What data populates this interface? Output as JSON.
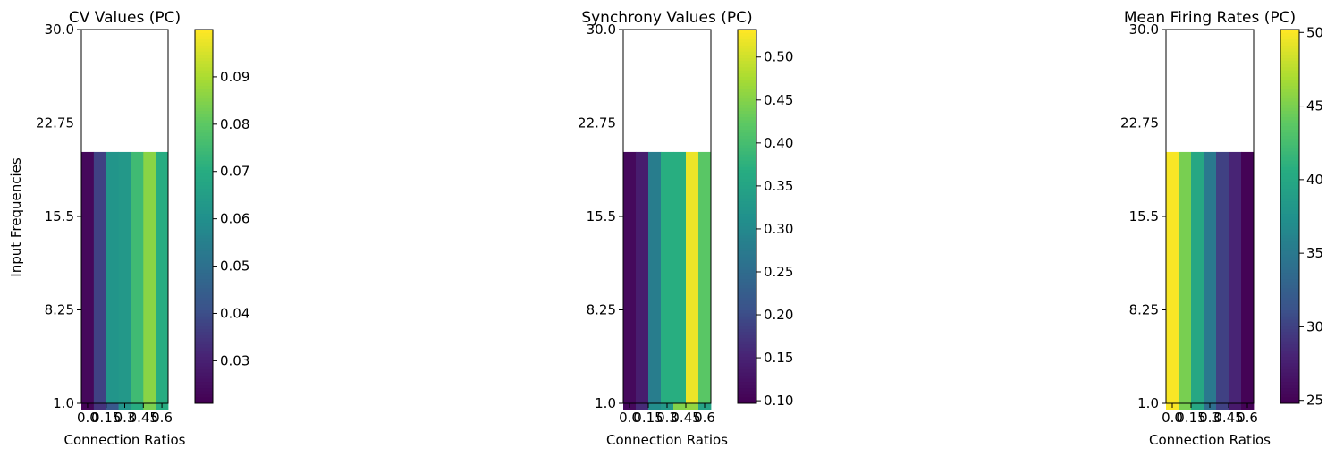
{
  "chart_data": [
    {
      "type": "heatmap",
      "title": "CV Values (PC)",
      "xlabel": "Connection Ratios",
      "ylabel": "Input Frequencies",
      "x_tick_labels": [
        "0.0",
        "0.15",
        "0.3",
        "0.45",
        "0.6"
      ],
      "x_tick_values": [
        0.0,
        0.15,
        0.3,
        0.45,
        0.6
      ],
      "y_tick_labels": [
        "1.0",
        "8.25",
        "15.5",
        "22.75",
        "30.0"
      ],
      "y_tick_values": [
        1.0,
        8.25,
        15.5,
        22.75,
        30.0
      ],
      "x": [
        0.0,
        0.1,
        0.2,
        0.3,
        0.4,
        0.5,
        0.6
      ],
      "y": [
        1,
        2,
        3,
        4,
        5,
        6,
        7,
        8,
        9,
        10,
        11,
        12,
        13,
        14,
        15,
        16,
        17,
        18,
        19,
        20
      ],
      "ylim": [
        1.0,
        30.0
      ],
      "colormap": "viridis",
      "colorbar": {
        "min": 0.021,
        "max": 0.1,
        "tick_labels": [
          "0.03",
          "0.04",
          "0.05",
          "0.06",
          "0.07",
          "0.08",
          "0.09"
        ],
        "tick_values": [
          0.03,
          0.04,
          0.05,
          0.06,
          0.07,
          0.08,
          0.09
        ]
      },
      "grid": false,
      "values": [
        [
          0.022,
          0.034,
          0.043,
          0.062,
          0.07,
          0.084,
          0.07
        ],
        [
          0.022,
          0.032,
          0.054,
          0.06,
          0.073,
          0.088,
          0.072
        ],
        [
          0.022,
          0.032,
          0.058,
          0.062,
          0.075,
          0.087,
          0.068
        ],
        [
          0.022,
          0.03,
          0.06,
          0.067,
          0.058,
          0.098,
          0.07
        ],
        [
          0.022,
          0.032,
          0.062,
          0.072,
          0.085,
          0.082,
          0.07
        ],
        [
          0.022,
          0.033,
          0.058,
          0.07,
          0.07,
          0.078,
          0.07
        ],
        [
          0.022,
          0.032,
          0.06,
          0.07,
          0.072,
          0.076,
          0.07
        ],
        [
          0.022,
          0.033,
          0.057,
          0.073,
          0.073,
          0.082,
          0.077
        ],
        [
          0.022,
          0.035,
          0.058,
          0.073,
          0.073,
          0.085,
          0.076
        ],
        [
          0.022,
          0.035,
          0.06,
          0.063,
          0.072,
          0.084,
          0.071
        ],
        [
          0.022,
          0.036,
          0.064,
          0.066,
          0.076,
          0.083,
          0.068
        ],
        [
          0.022,
          0.033,
          0.062,
          0.069,
          0.072,
          0.082,
          0.076
        ],
        [
          0.023,
          0.031,
          0.058,
          0.068,
          0.064,
          0.083,
          0.066
        ],
        [
          0.022,
          0.032,
          0.06,
          0.074,
          0.072,
          0.08,
          0.072
        ],
        [
          0.023,
          0.033,
          0.058,
          0.074,
          0.07,
          0.085,
          0.073
        ],
        [
          0.023,
          0.037,
          0.06,
          0.073,
          0.078,
          0.084,
          0.072
        ],
        [
          0.022,
          0.037,
          0.06,
          0.066,
          0.076,
          0.086,
          0.074
        ],
        [
          0.024,
          0.034,
          0.058,
          0.069,
          0.078,
          0.094,
          0.075
        ],
        [
          0.022,
          0.036,
          0.057,
          0.06,
          0.076,
          0.088,
          0.068
        ],
        [
          0.023,
          0.037,
          0.062,
          0.063,
          0.075,
          0.086,
          0.07
        ]
      ]
    },
    {
      "type": "heatmap",
      "title": "Synchrony Values (PC)",
      "xlabel": "Connection Ratios",
      "ylabel": "",
      "x_tick_labels": [
        "0.0",
        "0.15",
        "0.3",
        "0.45",
        "0.6"
      ],
      "x_tick_values": [
        0.0,
        0.15,
        0.3,
        0.45,
        0.6
      ],
      "y_tick_labels": [
        "1.0",
        "8.25",
        "15.5",
        "22.75",
        "30.0"
      ],
      "y_tick_values": [
        1.0,
        8.25,
        15.5,
        22.75,
        30.0
      ],
      "x": [
        0.0,
        0.1,
        0.2,
        0.3,
        0.4,
        0.5,
        0.6
      ],
      "y": [
        1,
        2,
        3,
        4,
        5,
        6,
        7,
        8,
        9,
        10,
        11,
        12,
        13,
        14,
        15,
        16,
        17,
        18,
        19,
        20
      ],
      "ylim": [
        1.0,
        30.0
      ],
      "colormap": "viridis",
      "colorbar": {
        "min": 0.097,
        "max": 0.532,
        "tick_labels": [
          "0.10",
          "0.15",
          "0.20",
          "0.25",
          "0.30",
          "0.35",
          "0.40",
          "0.45",
          "0.50"
        ],
        "tick_values": [
          0.1,
          0.15,
          0.2,
          0.25,
          0.3,
          0.35,
          0.4,
          0.45,
          0.5
        ]
      },
      "grid": false,
      "values": [
        [
          0.11,
          0.16,
          0.31,
          0.33,
          0.45,
          0.46,
          0.35
        ],
        [
          0.11,
          0.14,
          0.27,
          0.32,
          0.42,
          0.48,
          0.42
        ],
        [
          0.11,
          0.16,
          0.29,
          0.38,
          0.44,
          0.44,
          0.4
        ],
        [
          0.11,
          0.14,
          0.28,
          0.39,
          0.42,
          0.46,
          0.41
        ],
        [
          0.11,
          0.14,
          0.3,
          0.35,
          0.4,
          0.45,
          0.4
        ],
        [
          0.11,
          0.15,
          0.28,
          0.38,
          0.44,
          0.52,
          0.42
        ],
        [
          0.11,
          0.15,
          0.3,
          0.36,
          0.45,
          0.49,
          0.45
        ],
        [
          0.11,
          0.15,
          0.27,
          0.39,
          0.44,
          0.48,
          0.46
        ],
        [
          0.11,
          0.15,
          0.29,
          0.37,
          0.45,
          0.43,
          0.4
        ],
        [
          0.11,
          0.14,
          0.3,
          0.38,
          0.42,
          0.45,
          0.4
        ],
        [
          0.11,
          0.15,
          0.28,
          0.36,
          0.42,
          0.49,
          0.41
        ],
        [
          0.11,
          0.15,
          0.29,
          0.37,
          0.46,
          0.51,
          0.42
        ],
        [
          0.11,
          0.14,
          0.3,
          0.35,
          0.41,
          0.47,
          0.43
        ],
        [
          0.11,
          0.16,
          0.28,
          0.34,
          0.44,
          0.46,
          0.4
        ],
        [
          0.11,
          0.15,
          0.28,
          0.38,
          0.43,
          0.51,
          0.44
        ],
        [
          0.11,
          0.15,
          0.29,
          0.36,
          0.44,
          0.47,
          0.43
        ],
        [
          0.11,
          0.14,
          0.28,
          0.36,
          0.42,
          0.44,
          0.42
        ],
        [
          0.11,
          0.15,
          0.28,
          0.38,
          0.43,
          0.47,
          0.43
        ],
        [
          0.11,
          0.15,
          0.3,
          0.36,
          0.42,
          0.46,
          0.45
        ],
        [
          0.11,
          0.14,
          0.28,
          0.37,
          0.37,
          0.52,
          0.42
        ]
      ]
    },
    {
      "type": "heatmap",
      "title": "Mean Firing Rates (PC)",
      "xlabel": "Connection Ratios",
      "ylabel": "",
      "x_tick_labels": [
        "0.0",
        "0.15",
        "0.3",
        "0.45",
        "0.6"
      ],
      "x_tick_values": [
        0.0,
        0.15,
        0.3,
        0.45,
        0.6
      ],
      "y_tick_labels": [
        "1.0",
        "8.25",
        "15.5",
        "22.75",
        "30.0"
      ],
      "y_tick_values": [
        1.0,
        8.25,
        15.5,
        22.75,
        30.0
      ],
      "x": [
        0.0,
        0.1,
        0.2,
        0.3,
        0.4,
        0.5,
        0.6
      ],
      "y": [
        1,
        2,
        3,
        4,
        5,
        6,
        7,
        8,
        9,
        10,
        11,
        12,
        13,
        14,
        15,
        16,
        17,
        18,
        19,
        20
      ],
      "ylim": [
        1.0,
        30.0
      ],
      "colormap": "viridis",
      "colorbar": {
        "min": 24.8,
        "max": 50.2,
        "tick_labels": [
          "25",
          "30",
          "35",
          "40",
          "45",
          "50"
        ],
        "tick_values": [
          25,
          30,
          35,
          40,
          45,
          50
        ]
      },
      "grid": false,
      "values": [
        [
          50,
          45,
          40,
          34,
          30,
          27,
          25
        ],
        [
          50,
          45,
          40,
          35,
          31,
          27,
          25.5
        ],
        [
          50,
          45,
          39,
          34,
          31,
          28,
          25
        ],
        [
          50,
          45,
          40,
          35,
          30,
          28,
          25
        ],
        [
          50,
          45,
          40,
          34,
          31,
          28,
          26
        ],
        [
          50,
          45,
          40,
          34,
          30,
          27,
          25
        ],
        [
          50,
          45,
          39,
          34,
          30,
          28,
          25
        ],
        [
          50,
          45,
          40,
          35,
          31,
          28,
          25.5
        ],
        [
          50,
          45,
          40,
          35,
          31,
          28,
          25
        ],
        [
          50,
          45,
          40,
          34,
          30,
          28,
          25
        ],
        [
          50,
          45,
          39,
          35,
          31,
          28,
          25
        ],
        [
          50,
          44,
          40,
          35,
          31,
          28,
          25
        ],
        [
          50,
          45,
          40,
          34,
          30,
          27,
          25
        ],
        [
          50,
          45,
          39,
          35,
          31,
          28,
          26
        ],
        [
          50,
          45,
          40,
          34,
          30,
          28,
          25
        ],
        [
          50,
          45,
          40,
          35,
          31,
          28,
          25
        ],
        [
          50,
          45,
          40,
          35,
          30,
          28,
          25.5
        ],
        [
          50,
          45,
          39,
          34,
          31,
          29,
          25
        ],
        [
          50,
          45,
          40,
          35,
          31,
          28,
          25
        ],
        [
          50,
          45,
          40,
          35,
          30,
          28,
          25
        ]
      ]
    }
  ]
}
